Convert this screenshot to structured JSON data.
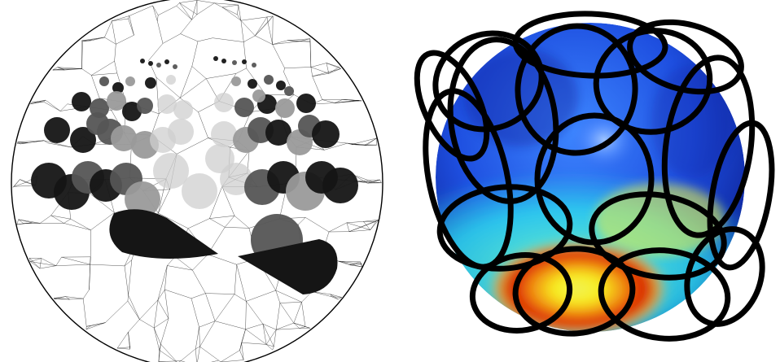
{
  "figure": {
    "panels": [
      {
        "id": "left",
        "kind": "wireframe-sphere-with-discs"
      },
      {
        "id": "right",
        "kind": "colormapped-sphere-with-coil-loops"
      }
    ]
  },
  "colors": {
    "wire": "#000000",
    "disc_dark": "#151515",
    "disc_mid": "#555555",
    "disc_light": "#9a9a9a",
    "disc_pale": "#cfcfcf",
    "coil": "#000000",
    "sphere_blue_deep": "#0a1fa8",
    "sphere_blue": "#1e5cf0",
    "sphere_cyan": "#2ee0f0",
    "sphere_yellow": "#f8f020",
    "sphere_red": "#d81800"
  }
}
